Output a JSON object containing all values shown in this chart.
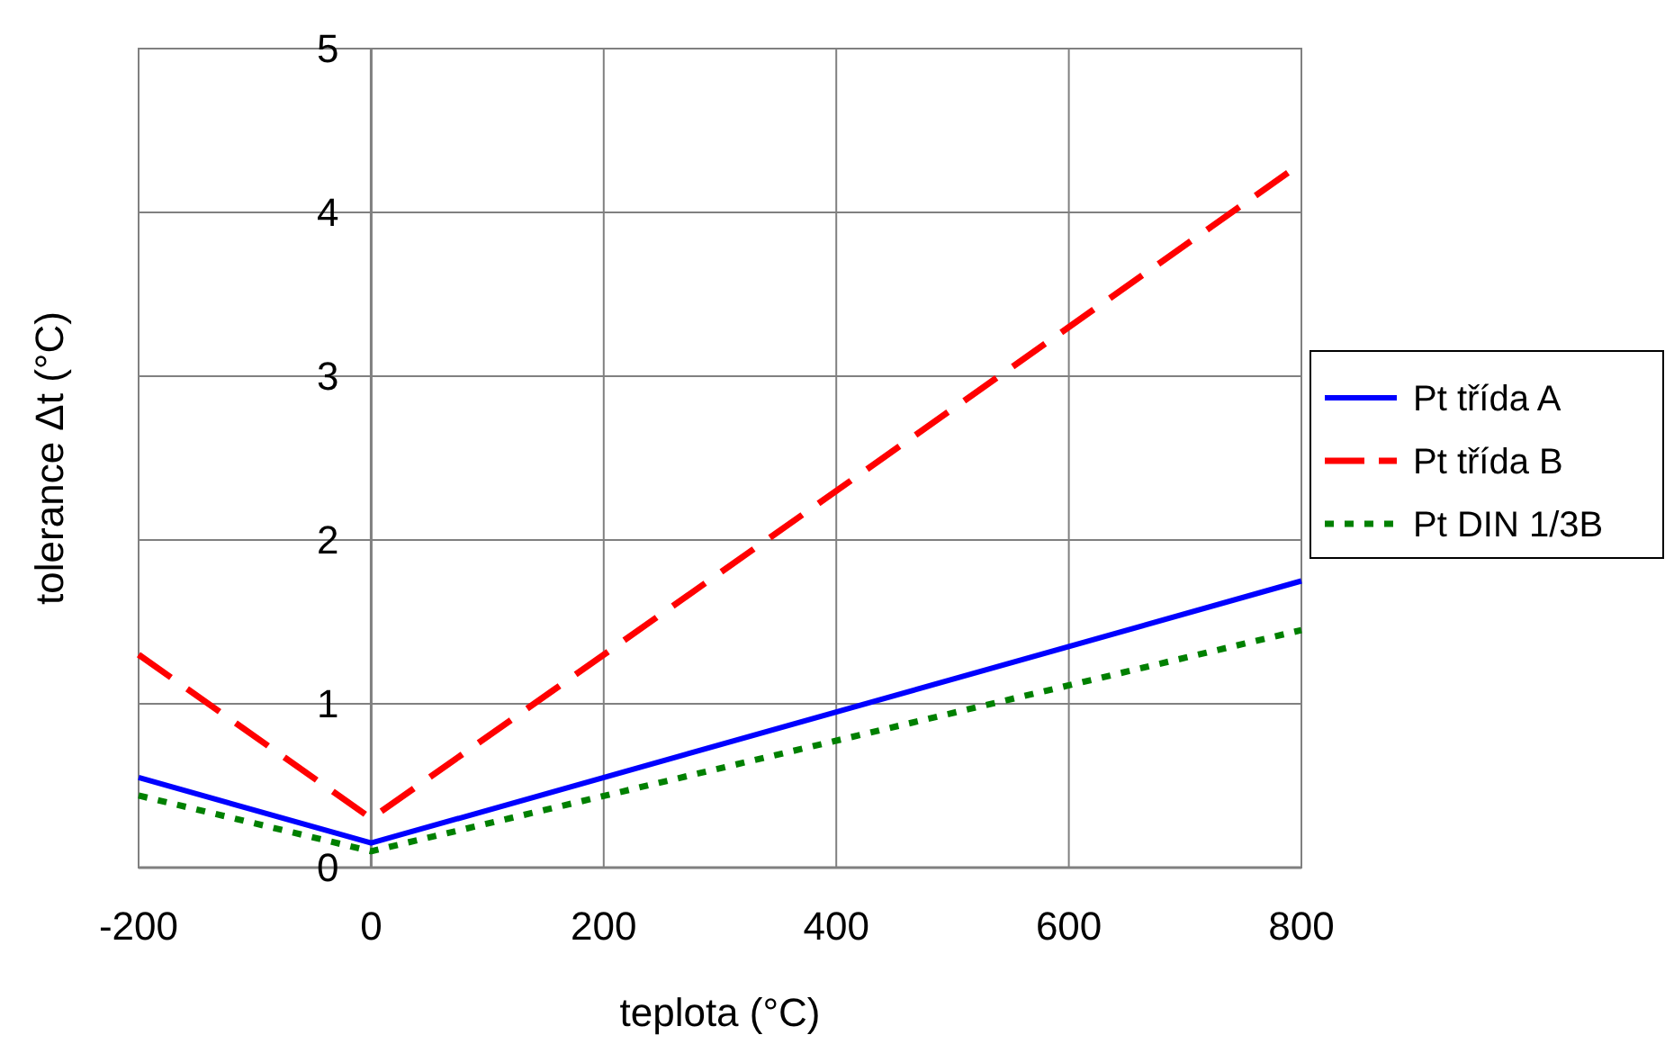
{
  "chart_data": {
    "type": "line",
    "xlabel": "teplota (°C)",
    "ylabel": "tolerance Δt (°C)",
    "x": [
      -200,
      0,
      800
    ],
    "series": [
      {
        "name": "Pt třída A",
        "color": "#0000ff",
        "values": [
          0.55,
          0.15,
          1.75
        ],
        "line_style": "solid"
      },
      {
        "name": "Pt třída B",
        "color": "#ff0000",
        "values": [
          1.3,
          0.3,
          4.3
        ],
        "line_style": "dashed"
      },
      {
        "name": "Pt DIN 1/3B",
        "color": "#008000",
        "values": [
          0.44,
          0.1,
          1.45
        ],
        "line_style": "dotted"
      }
    ],
    "xlim": [
      -200,
      800
    ],
    "xticks": [
      -200,
      0,
      200,
      400,
      600,
      800
    ],
    "ylim": [
      0,
      5
    ],
    "yticks": [
      0,
      1,
      2,
      3,
      4,
      5
    ],
    "grid": true,
    "legend": "right"
  }
}
